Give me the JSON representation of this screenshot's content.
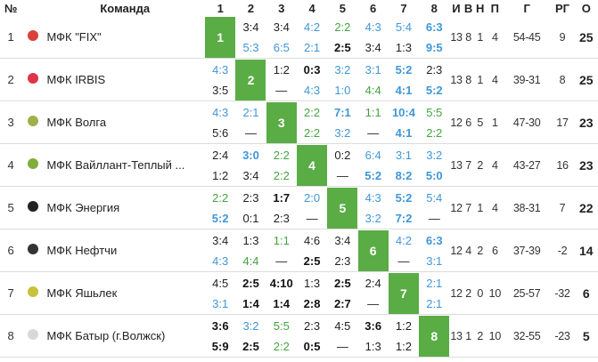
{
  "headers": {
    "num": "№",
    "team": "Команда",
    "cols": [
      "1",
      "2",
      "3",
      "4",
      "5",
      "6",
      "7",
      "8"
    ],
    "i": "И",
    "v": "В",
    "n": "Н",
    "p": "П",
    "g": "Г",
    "rg": "РГ",
    "o": "О"
  },
  "colors": {
    "win": "#44a340",
    "draw": "#3f96d8",
    "diag": "#5aac45"
  },
  "rows": [
    {
      "num": "1",
      "team": "МФК \"FIX\"",
      "logo_color": "#d9413a",
      "cells": [
        null,
        [
          [
            "3:4",
            "loss"
          ],
          [
            "5:3",
            "draw"
          ]
        ],
        [
          [
            "3:4",
            "loss"
          ],
          [
            "6:5",
            "draw"
          ]
        ],
        [
          [
            "4:2",
            "draw"
          ],
          [
            "2:1",
            "draw"
          ]
        ],
        [
          [
            "2:2",
            "win"
          ],
          [
            "2:5",
            "bloss"
          ]
        ],
        [
          [
            "4:3",
            "draw"
          ],
          [
            "3:4",
            "loss"
          ]
        ],
        [
          [
            "5:4",
            "draw"
          ],
          [
            "1:3",
            "loss"
          ]
        ],
        [
          [
            "6:3",
            "bdraw"
          ],
          [
            "9:5",
            "bdraw"
          ]
        ]
      ],
      "i": "13",
      "v": "8",
      "n": "1",
      "p": "4",
      "g": "54-45",
      "rg": "9",
      "o": "25"
    },
    {
      "num": "2",
      "team": "МФК IRBIS",
      "logo_color": "#e0334a",
      "cells": [
        [
          [
            "4:3",
            "draw"
          ],
          [
            "3:5",
            "loss"
          ]
        ],
        null,
        [
          [
            "1:2",
            "loss"
          ],
          [
            "—",
            "loss"
          ]
        ],
        [
          [
            "0:3",
            "bloss"
          ],
          [
            "4:3",
            "draw"
          ]
        ],
        [
          [
            "3:2",
            "draw"
          ],
          [
            "1:0",
            "draw"
          ]
        ],
        [
          [
            "3:1",
            "draw"
          ],
          [
            "4:4",
            "win"
          ]
        ],
        [
          [
            "5:2",
            "bdraw"
          ],
          [
            "4:1",
            "bdraw"
          ]
        ],
        [
          [
            "2:3",
            "loss"
          ],
          [
            "5:2",
            "bdraw"
          ]
        ]
      ],
      "i": "13",
      "v": "8",
      "n": "1",
      "p": "4",
      "g": "39-31",
      "rg": "8",
      "o": "25"
    },
    {
      "num": "3",
      "team": "МФК Волга",
      "logo_color": "#9db34a",
      "cells": [
        [
          [
            "4:3",
            "draw"
          ],
          [
            "5:6",
            "loss"
          ]
        ],
        [
          [
            "2:1",
            "draw"
          ],
          [
            "—",
            "loss"
          ]
        ],
        null,
        [
          [
            "2:2",
            "win"
          ],
          [
            "2:2",
            "win"
          ]
        ],
        [
          [
            "7:1",
            "bdraw"
          ],
          [
            "3:2",
            "draw"
          ]
        ],
        [
          [
            "1:1",
            "win"
          ],
          [
            "—",
            "loss"
          ]
        ],
        [
          [
            "10:4",
            "bdraw"
          ],
          [
            "4:1",
            "bdraw"
          ]
        ],
        [
          [
            "5:5",
            "win"
          ],
          [
            "2:2",
            "win"
          ]
        ]
      ],
      "i": "12",
      "v": "6",
      "n": "5",
      "p": "1",
      "g": "47-30",
      "rg": "17",
      "o": "23"
    },
    {
      "num": "4",
      "team": "МФК Вайллант-Теплый ...",
      "logo_color": "#7fae3a",
      "cells": [
        [
          [
            "2:4",
            "loss"
          ],
          [
            "1:2",
            "loss"
          ]
        ],
        [
          [
            "3:0",
            "bdraw"
          ],
          [
            "3:4",
            "loss"
          ]
        ],
        [
          [
            "2:2",
            "win"
          ],
          [
            "2:2",
            "win"
          ]
        ],
        null,
        [
          [
            "0:2",
            "loss"
          ],
          [
            "—",
            "loss"
          ]
        ],
        [
          [
            "6:4",
            "draw"
          ],
          [
            "5:2",
            "bdraw"
          ]
        ],
        [
          [
            "3:1",
            "draw"
          ],
          [
            "8:2",
            "bdraw"
          ]
        ],
        [
          [
            "3:2",
            "draw"
          ],
          [
            "5:0",
            "bdraw"
          ]
        ]
      ],
      "i": "13",
      "v": "7",
      "n": "2",
      "p": "4",
      "g": "43-27",
      "rg": "16",
      "o": "23"
    },
    {
      "num": "5",
      "team": "МФК Энергия",
      "logo_color": "#222222",
      "cells": [
        [
          [
            "2:2",
            "win"
          ],
          [
            "5:2",
            "bdraw"
          ]
        ],
        [
          [
            "2:3",
            "loss"
          ],
          [
            "0:1",
            "loss"
          ]
        ],
        [
          [
            "1:7",
            "bloss"
          ],
          [
            "2:3",
            "loss"
          ]
        ],
        [
          [
            "2:0",
            "draw"
          ],
          [
            "—",
            "loss"
          ]
        ],
        null,
        [
          [
            "4:3",
            "draw"
          ],
          [
            "3:2",
            "draw"
          ]
        ],
        [
          [
            "5:2",
            "bdraw"
          ],
          [
            "7:2",
            "bdraw"
          ]
        ],
        [
          [
            "5:4",
            "draw"
          ],
          [
            "—",
            "loss"
          ]
        ]
      ],
      "i": "12",
      "v": "7",
      "n": "1",
      "p": "4",
      "g": "38-31",
      "rg": "7",
      "o": "22"
    },
    {
      "num": "6",
      "team": "МФК Нефтчи",
      "logo_color": "#333333",
      "cells": [
        [
          [
            "3:4",
            "loss"
          ],
          [
            "4:3",
            "draw"
          ]
        ],
        [
          [
            "1:3",
            "loss"
          ],
          [
            "4:4",
            "win"
          ]
        ],
        [
          [
            "1:1",
            "win"
          ],
          [
            "—",
            "loss"
          ]
        ],
        [
          [
            "4:6",
            "loss"
          ],
          [
            "2:5",
            "bloss"
          ]
        ],
        [
          [
            "3:4",
            "loss"
          ],
          [
            "2:3",
            "loss"
          ]
        ],
        null,
        [
          [
            "4:2",
            "draw"
          ],
          [
            "—",
            "loss"
          ]
        ],
        [
          [
            "6:3",
            "bdraw"
          ],
          [
            "3:1",
            "draw"
          ]
        ]
      ],
      "i": "12",
      "v": "4",
      "n": "2",
      "p": "6",
      "g": "37-39",
      "rg": "-2",
      "o": "14"
    },
    {
      "num": "7",
      "team": "МФК Яшьлек",
      "logo_color": "#c8c23a",
      "cells": [
        [
          [
            "4:5",
            "loss"
          ],
          [
            "3:1",
            "draw"
          ]
        ],
        [
          [
            "2:5",
            "bloss"
          ],
          [
            "1:4",
            "bloss"
          ]
        ],
        [
          [
            "4:10",
            "bloss"
          ],
          [
            "1:4",
            "bloss"
          ]
        ],
        [
          [
            "1:3",
            "loss"
          ],
          [
            "2:8",
            "bloss"
          ]
        ],
        [
          [
            "2:5",
            "bloss"
          ],
          [
            "2:7",
            "bloss"
          ]
        ],
        [
          [
            "2:4",
            "loss"
          ],
          [
            "—",
            "loss"
          ]
        ],
        null,
        [
          [
            "2:1",
            "draw"
          ],
          [
            "2:1",
            "draw"
          ]
        ]
      ],
      "i": "12",
      "v": "2",
      "n": "0",
      "p": "10",
      "g": "25-57",
      "rg": "-32",
      "o": "6"
    },
    {
      "num": "8",
      "team": "МФК Батыр (г.Волжск)",
      "logo_color": "#d8d8d8",
      "cells": [
        [
          [
            "3:6",
            "bloss"
          ],
          [
            "5:9",
            "bloss"
          ]
        ],
        [
          [
            "3:2",
            "draw"
          ],
          [
            "2:5",
            "bloss"
          ]
        ],
        [
          [
            "5:5",
            "win"
          ],
          [
            "2:2",
            "win"
          ]
        ],
        [
          [
            "2:3",
            "loss"
          ],
          [
            "0:5",
            "bloss"
          ]
        ],
        [
          [
            "4:5",
            "loss"
          ],
          [
            "—",
            "loss"
          ]
        ],
        [
          [
            "3:6",
            "bloss"
          ],
          [
            "1:3",
            "loss"
          ]
        ],
        [
          [
            "1:2",
            "loss"
          ],
          [
            "1:2",
            "loss"
          ]
        ],
        null
      ],
      "i": "13",
      "v": "1",
      "n": "2",
      "p": "10",
      "g": "32-55",
      "rg": "-23",
      "o": "5"
    }
  ]
}
